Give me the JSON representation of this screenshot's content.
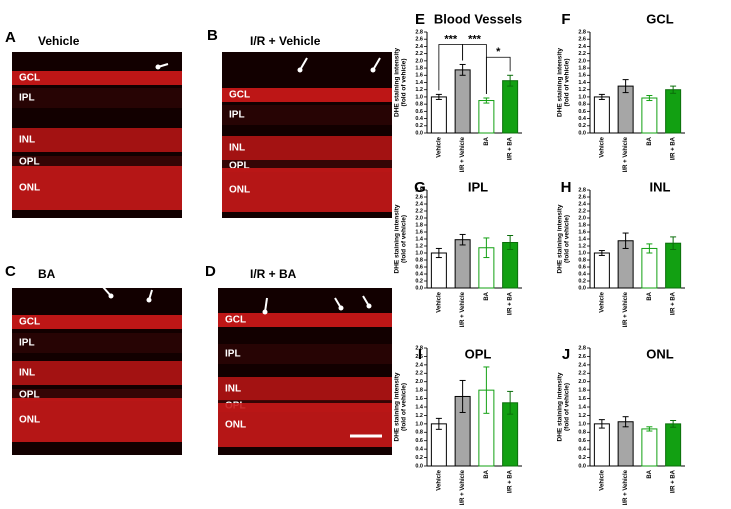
{
  "panels": [
    {
      "letter": "A",
      "title": "Vehicle",
      "layers": [
        "GCL",
        "IPL",
        "INL",
        "OPL",
        "ONL"
      ]
    },
    {
      "letter": "B",
      "title": "I/R + Vehicle",
      "layers": [
        "GCL",
        "IPL",
        "INL",
        "OPL",
        "ONL"
      ]
    },
    {
      "letter": "C",
      "title": "BA",
      "layers": [
        "GCL",
        "IPL",
        "INL",
        "OPL",
        "ONL"
      ]
    },
    {
      "letter": "D",
      "title": "I/R + BA",
      "layers": [
        "GCL",
        "IPL",
        "INL",
        "OPL",
        "ONL"
      ]
    }
  ],
  "chart_data": [
    {
      "type": "bar",
      "letter": "E",
      "title": "Blood Vessels",
      "ylabel": [
        "DHE staining intensity",
        "(fold of vehicle)"
      ],
      "categories": [
        "Vehicle",
        "I/R + Vehicle",
        "BA",
        "I/R + BA"
      ],
      "values": [
        1.0,
        1.75,
        0.9,
        1.45
      ],
      "errors": [
        0.07,
        0.15,
        0.07,
        0.15
      ],
      "fills": [
        "#ffffff",
        "#a6a6a6",
        "#ffffff",
        "#12a012"
      ],
      "strokes": [
        "#000000",
        "#000000",
        "#12a012",
        "#0b6e0b"
      ],
      "annotations": [
        {
          "text": "***",
          "between": [
            0,
            1
          ]
        },
        {
          "text": "***",
          "between": [
            1,
            2
          ]
        },
        {
          "text": "*",
          "between": [
            2,
            3
          ]
        }
      ],
      "ylim": [
        0,
        2.8
      ],
      "yticks": [
        {
          "value": 0,
          "label": "0.0"
        },
        {
          "value": 0.2,
          "label": "0.2"
        },
        {
          "value": 0.4,
          "label": "0.4"
        },
        {
          "value": 0.6,
          "label": "0.6"
        },
        {
          "value": 0.8,
          "label": "0.8"
        },
        {
          "value": 1,
          "label": "1.0"
        },
        {
          "value": 1.2,
          "label": "1.2"
        },
        {
          "value": 1.4,
          "label": "1.4"
        },
        {
          "value": 1.6,
          "label": "1.6"
        },
        {
          "value": 1.8,
          "label": "1.8"
        },
        {
          "value": 2,
          "label": "2.0"
        },
        {
          "value": 2.2,
          "label": "2.2"
        },
        {
          "value": 2.4,
          "label": "2.4"
        },
        {
          "value": 2.6,
          "label": "2.6"
        },
        {
          "value": 2.8,
          "label": "2.8"
        }
      ]
    },
    {
      "type": "bar",
      "letter": "F",
      "title": "GCL",
      "ylabel": [
        "DHE staining intensity",
        "(fold of vehicle)"
      ],
      "categories": [
        "Vehicle",
        "I/R + Vehicle",
        "BA",
        "I/R + BA"
      ],
      "values": [
        1.0,
        1.3,
        0.97,
        1.2
      ],
      "errors": [
        0.07,
        0.18,
        0.07,
        0.1
      ],
      "fills": [
        "#ffffff",
        "#a6a6a6",
        "#ffffff",
        "#12a012"
      ],
      "strokes": [
        "#000000",
        "#000000",
        "#12a012",
        "#0b6e0b"
      ],
      "ylim": [
        0,
        2.8
      ],
      "yticks": [
        {
          "value": 0,
          "label": "0.0"
        },
        {
          "value": 0.2,
          "label": "0.2"
        },
        {
          "value": 0.4,
          "label": "0.4"
        },
        {
          "value": 0.6,
          "label": "0.6"
        },
        {
          "value": 0.8,
          "label": "0.8"
        },
        {
          "value": 1,
          "label": "1.0"
        },
        {
          "value": 1.2,
          "label": "1.2"
        },
        {
          "value": 1.4,
          "label": "1.4"
        },
        {
          "value": 1.6,
          "label": "1.6"
        },
        {
          "value": 1.8,
          "label": "1.8"
        },
        {
          "value": 2,
          "label": "2.0"
        },
        {
          "value": 2.2,
          "label": "2.2"
        },
        {
          "value": 2.4,
          "label": "2.4"
        },
        {
          "value": 2.6,
          "label": "2.6"
        },
        {
          "value": 2.8,
          "label": "2.8"
        }
      ]
    },
    {
      "type": "bar",
      "letter": "G",
      "title": "IPL",
      "ylabel": [
        "DHE staining intensity",
        "(fold of vehicle)"
      ],
      "categories": [
        "Vehicle",
        "I/R + Vehicle",
        "BA",
        "I/R + BA"
      ],
      "values": [
        1.0,
        1.38,
        1.15,
        1.3
      ],
      "errors": [
        0.13,
        0.15,
        0.28,
        0.2
      ],
      "fills": [
        "#ffffff",
        "#a6a6a6",
        "#ffffff",
        "#12a012"
      ],
      "strokes": [
        "#000000",
        "#000000",
        "#12a012",
        "#0b6e0b"
      ],
      "ylim": [
        0,
        2.8
      ],
      "yticks": [
        {
          "value": 0,
          "label": "0.0"
        },
        {
          "value": 0.2,
          "label": "0.2"
        },
        {
          "value": 0.4,
          "label": "0.4"
        },
        {
          "value": 0.6,
          "label": "0.6"
        },
        {
          "value": 0.8,
          "label": "0.8"
        },
        {
          "value": 1,
          "label": "1.0"
        },
        {
          "value": 1.2,
          "label": "1.2"
        },
        {
          "value": 1.4,
          "label": "1.4"
        },
        {
          "value": 1.6,
          "label": "1.6"
        },
        {
          "value": 1.8,
          "label": "1.8"
        },
        {
          "value": 2,
          "label": "2.0"
        },
        {
          "value": 2.2,
          "label": "2.2"
        },
        {
          "value": 2.4,
          "label": "2.4"
        },
        {
          "value": 2.6,
          "label": "2.6"
        },
        {
          "value": 2.8,
          "label": "2.8"
        }
      ]
    },
    {
      "type": "bar",
      "letter": "H",
      "title": "INL",
      "ylabel": [
        "DHE staining intensity",
        "(fold of vehicle)"
      ],
      "categories": [
        "Vehicle",
        "I/R + Vehicle",
        "BA",
        "I/R + BA"
      ],
      "values": [
        1.0,
        1.35,
        1.13,
        1.28
      ],
      "errors": [
        0.07,
        0.22,
        0.13,
        0.18
      ],
      "fills": [
        "#ffffff",
        "#a6a6a6",
        "#ffffff",
        "#12a012"
      ],
      "strokes": [
        "#000000",
        "#000000",
        "#12a012",
        "#0b6e0b"
      ],
      "ylim": [
        0,
        2.8
      ],
      "yticks": [
        {
          "value": 0,
          "label": "0.0"
        },
        {
          "value": 0.2,
          "label": "0.2"
        },
        {
          "value": 0.4,
          "label": "0.4"
        },
        {
          "value": 0.6,
          "label": "0.6"
        },
        {
          "value": 0.8,
          "label": "0.8"
        },
        {
          "value": 1,
          "label": "1.0"
        },
        {
          "value": 1.2,
          "label": "1.2"
        },
        {
          "value": 1.4,
          "label": "1.4"
        },
        {
          "value": 1.6,
          "label": "1.6"
        },
        {
          "value": 1.8,
          "label": "1.8"
        },
        {
          "value": 2,
          "label": "2.0"
        },
        {
          "value": 2.2,
          "label": "2.2"
        },
        {
          "value": 2.4,
          "label": "2.4"
        },
        {
          "value": 2.6,
          "label": "2.6"
        },
        {
          "value": 2.8,
          "label": "2.8"
        }
      ]
    },
    {
      "type": "bar",
      "letter": "I",
      "title": "OPL",
      "ylabel": [
        "DHE staining intensity",
        "(fold of vehicle)"
      ],
      "categories": [
        "Vehicle",
        "I/R + Vehicle",
        "BA",
        "I/R + BA"
      ],
      "values": [
        1.0,
        1.65,
        1.8,
        1.5
      ],
      "errors": [
        0.13,
        0.38,
        0.55,
        0.27
      ],
      "fills": [
        "#ffffff",
        "#a6a6a6",
        "#ffffff",
        "#12a012"
      ],
      "strokes": [
        "#000000",
        "#000000",
        "#12a012",
        "#0b6e0b"
      ],
      "ylim": [
        0,
        2.8
      ],
      "yticks": [
        {
          "value": 0,
          "label": "0.0"
        },
        {
          "value": 0.2,
          "label": "0.2"
        },
        {
          "value": 0.4,
          "label": "0.4"
        },
        {
          "value": 0.6,
          "label": "0.6"
        },
        {
          "value": 0.8,
          "label": "0.8"
        },
        {
          "value": 1,
          "label": "1.0"
        },
        {
          "value": 1.2,
          "label": "1.2"
        },
        {
          "value": 1.4,
          "label": "1.4"
        },
        {
          "value": 1.6,
          "label": "1.6"
        },
        {
          "value": 1.8,
          "label": "1.8"
        },
        {
          "value": 2,
          "label": "2.0"
        },
        {
          "value": 2.2,
          "label": "2.2"
        },
        {
          "value": 2.4,
          "label": "2.4"
        },
        {
          "value": 2.6,
          "label": "2.6"
        },
        {
          "value": 2.8,
          "label": "2.8"
        }
      ]
    },
    {
      "type": "bar",
      "letter": "J",
      "title": "ONL",
      "ylabel": [
        "DHE staining intensity",
        "(fold of vehicle)"
      ],
      "categories": [
        "Vehicle",
        "I/R + Vehicle",
        "BA",
        "I/R + BA"
      ],
      "values": [
        1.0,
        1.05,
        0.88,
        1.0
      ],
      "errors": [
        0.1,
        0.12,
        0.05,
        0.08
      ],
      "fills": [
        "#ffffff",
        "#a6a6a6",
        "#ffffff",
        "#12a012"
      ],
      "strokes": [
        "#000000",
        "#000000",
        "#12a012",
        "#0b6e0b"
      ],
      "ylim": [
        0,
        2.8
      ],
      "yticks": [
        {
          "value": 0,
          "label": "0.0"
        },
        {
          "value": 0.2,
          "label": "0.2"
        },
        {
          "value": 0.4,
          "label": "0.4"
        },
        {
          "value": 0.6,
          "label": "0.6"
        },
        {
          "value": 0.8,
          "label": "0.8"
        },
        {
          "value": 1,
          "label": "1.0"
        },
        {
          "value": 1.2,
          "label": "1.2"
        },
        {
          "value": 1.4,
          "label": "1.4"
        },
        {
          "value": 1.6,
          "label": "1.6"
        },
        {
          "value": 1.8,
          "label": "1.8"
        },
        {
          "value": 2,
          "label": "2.0"
        },
        {
          "value": 2.2,
          "label": "2.2"
        },
        {
          "value": 2.4,
          "label": "2.4"
        },
        {
          "value": 2.6,
          "label": "2.6"
        },
        {
          "value": 2.8,
          "label": "2.8"
        }
      ]
    }
  ]
}
